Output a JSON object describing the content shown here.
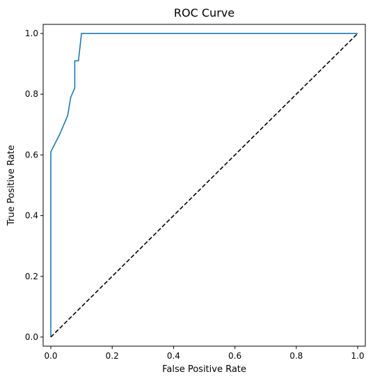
{
  "chart_data": {
    "type": "line",
    "title": "ROC Curve",
    "xlabel": "False Positive Rate",
    "ylabel": "True Positive Rate",
    "xlim": [
      -0.025,
      1.025
    ],
    "ylim": [
      -0.03,
      1.03
    ],
    "xticks": [
      "0.0",
      "0.2",
      "0.4",
      "0.6",
      "0.8",
      "1.0"
    ],
    "yticks": [
      "0.0",
      "0.2",
      "0.4",
      "0.6",
      "0.8",
      "1.0"
    ],
    "grid": false,
    "series": [
      {
        "color": "#1f77b4",
        "linestyle": "solid",
        "x": [
          0.0,
          0.0,
          0.0,
          0.03,
          0.03,
          0.055,
          0.065,
          0.078,
          0.078,
          0.09,
          0.1,
          0.1,
          1.0
        ],
        "y": [
          0.0,
          0.0,
          0.61,
          0.67,
          0.67,
          0.73,
          0.79,
          0.82,
          0.91,
          0.91,
          1.0,
          1.0,
          1.0
        ]
      },
      {
        "color": "#000000",
        "linestyle": "dashed",
        "x": [
          0.0,
          1.0
        ],
        "y": [
          0.0,
          1.0
        ]
      }
    ]
  }
}
